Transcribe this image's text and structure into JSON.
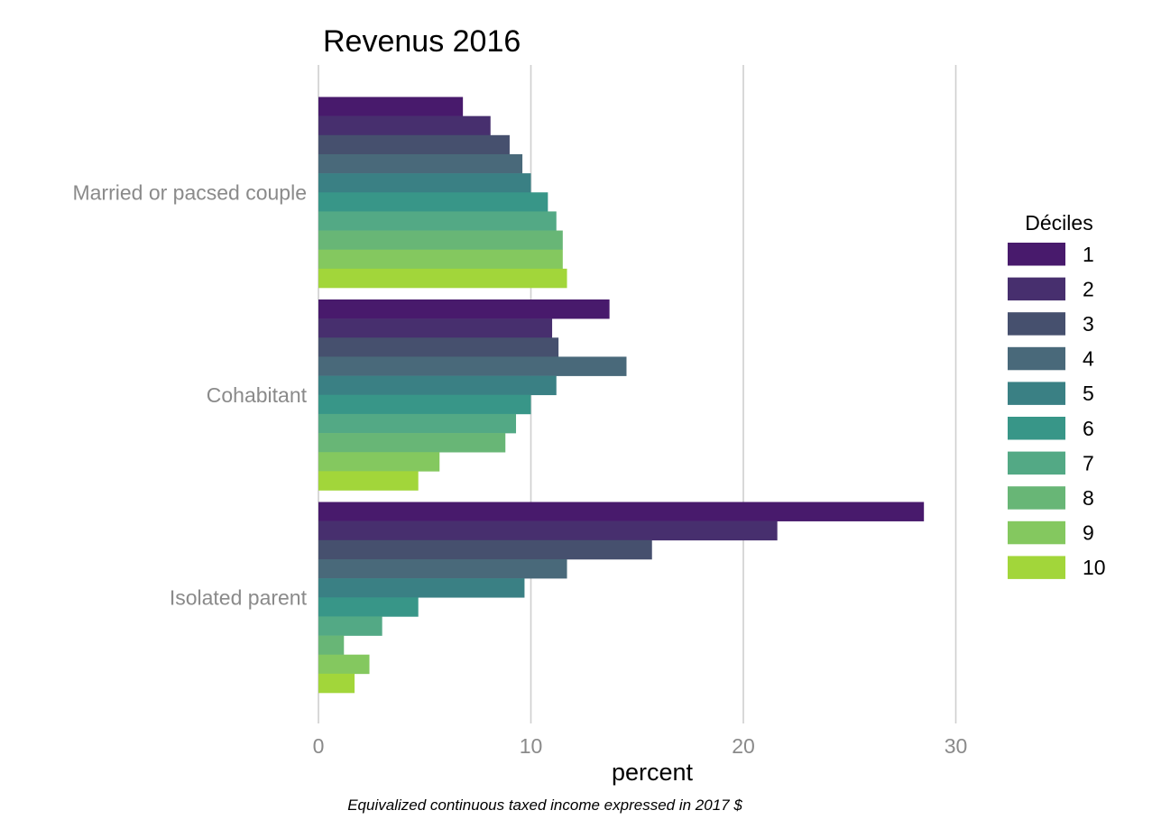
{
  "chart_data": {
    "type": "bar",
    "orientation": "horizontal",
    "title": "Revenus 2016",
    "xlabel": "percent",
    "ylabel": "",
    "caption": "Equivalized continuous taxed income expressed in 2017 $",
    "xlim": [
      0,
      36
    ],
    "xticks": [
      0,
      10,
      20,
      30
    ],
    "grid": "vertical major",
    "categories": [
      "Married or pacsed couple",
      "Cohabitant",
      "Isolated parent"
    ],
    "legend": {
      "title": "Déciles",
      "position": "right"
    },
    "series": [
      {
        "name": "1",
        "color": "#481A6C",
        "values": [
          6.8,
          13.7,
          28.5
        ]
      },
      {
        "name": "2",
        "color": "#472F6E",
        "values": [
          8.1,
          11.0,
          21.6
        ]
      },
      {
        "name": "3",
        "color": "#46506E",
        "values": [
          9.0,
          11.3,
          15.7
        ]
      },
      {
        "name": "4",
        "color": "#49697A",
        "values": [
          9.6,
          14.5,
          11.7
        ]
      },
      {
        "name": "5",
        "color": "#3A8084",
        "values": [
          10.0,
          11.2,
          9.7
        ]
      },
      {
        "name": "6",
        "color": "#389688",
        "values": [
          10.8,
          10.0,
          4.7
        ]
      },
      {
        "name": "7",
        "color": "#53A985",
        "values": [
          11.2,
          9.3,
          3.0
        ]
      },
      {
        "name": "8",
        "color": "#68B676",
        "values": [
          11.5,
          8.8,
          1.2
        ]
      },
      {
        "name": "9",
        "color": "#84C85F",
        "values": [
          11.5,
          5.7,
          2.4
        ]
      },
      {
        "name": "10",
        "color": "#A2D63A",
        "values": [
          11.7,
          4.7,
          1.7
        ]
      }
    ]
  }
}
